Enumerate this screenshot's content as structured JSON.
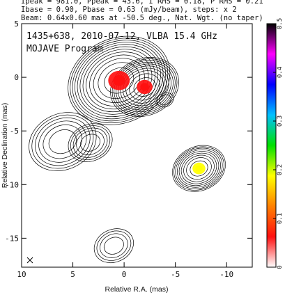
{
  "header": {
    "line1": "Ipeak = 981.0, Ppeak = 43.6, I RMS = 0.18, P RMS = 0.21",
    "line2": "Ibase = 0.90, Pbase = 0.63 (mJy/beam), steps: x 2",
    "line3": "Beam: 0.64x0.60 mas at -50.5 deg., Nat. Wgt. (no taper)"
  },
  "plot": {
    "title_line1": "1435+638, 2010-07-12, VLBA 15.4 GHz",
    "title_line2": "MOJAVE Program"
  },
  "chart_data": {
    "type": "heatmap",
    "title": "1435+638, 2010-07-12, VLBA 15.4 GHz",
    "subtitle": "MOJAVE Program",
    "xlabel": "Relative R.A. (mas)",
    "ylabel": "Relative Declination (mas)",
    "xlim": [
      10,
      -12.5
    ],
    "ylim": [
      -17.7,
      5
    ],
    "x_reversed": true,
    "x_ticks": [
      10,
      5,
      0,
      -5,
      -10
    ],
    "y_ticks": [
      5,
      0,
      -5,
      -10,
      -15
    ],
    "colorbar": {
      "min": 0,
      "max": 0.5,
      "ticks": [
        0,
        0.1,
        0.2,
        0.3,
        0.4,
        0.5
      ],
      "colors": [
        "#ffffff",
        "#ff1010",
        "#ff8000",
        "#ffff00",
        "#00e000",
        "#00c0ff",
        "#0000ff",
        "#ff00ff",
        "#000000"
      ]
    },
    "components": [
      {
        "x": 0.5,
        "y": -0.3,
        "sigma": 1.5,
        "levels": 12,
        "fractional_polarization": 0.03
      },
      {
        "x": -2.0,
        "y": -0.9,
        "sigma": 1.1,
        "levels": 10,
        "fractional_polarization": 0.03
      },
      {
        "x": 6.0,
        "y": -6.0,
        "sigma": 1.4,
        "levels": 6,
        "fractional_polarization": null
      },
      {
        "x": 3.3,
        "y": -6.1,
        "sigma": 1.0,
        "levels": 5,
        "fractional_polarization": null
      },
      {
        "x": -7.3,
        "y": -8.5,
        "sigma": 0.9,
        "levels": 9,
        "fractional_polarization": 0.2
      },
      {
        "x": -4.0,
        "y": -2.1,
        "sigma": 0.6,
        "levels": 2,
        "fractional_polarization": null
      },
      {
        "x": 1.0,
        "y": -15.7,
        "sigma": 1.0,
        "levels": 4,
        "fractional_polarization": null
      }
    ]
  }
}
